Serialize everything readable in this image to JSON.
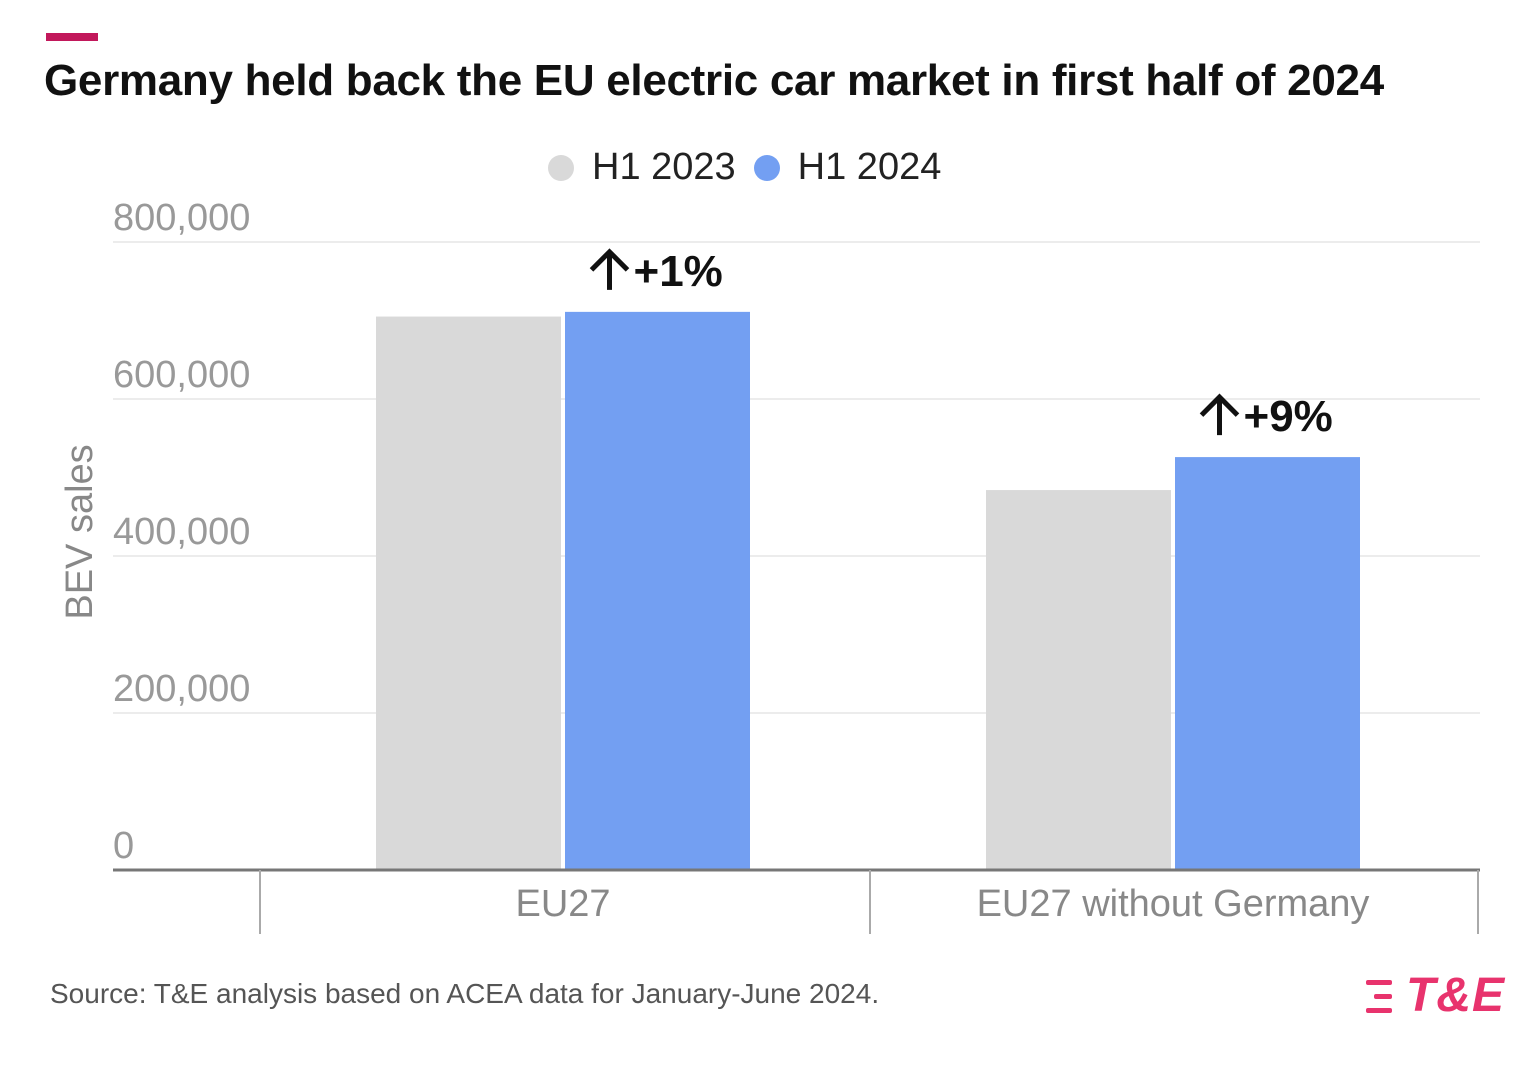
{
  "title": "Germany held back the EU electric car market in first half of 2024",
  "source": "Source: T&E analysis based on ACEA data for January-June 2024.",
  "logo_text": "T&E",
  "colors": {
    "accent": "#c2185b",
    "h1_2023": "#d9d9d9",
    "h1_2024": "#739ff2",
    "logo": "#e8336d"
  },
  "chart_data": {
    "type": "bar",
    "title": "Germany held back the EU electric car market in first half of 2024",
    "xlabel": "",
    "ylabel": "BEV sales",
    "ylim": [
      0,
      800000
    ],
    "yticks": [
      0,
      200000,
      400000,
      600000,
      800000
    ],
    "ytick_labels": [
      "0",
      "200,000",
      "400,000",
      "600,000",
      "800,000"
    ],
    "categories": [
      "EU27",
      "EU27 without Germany"
    ],
    "series": [
      {
        "name": "H1 2023",
        "values": [
          705000,
          484000
        ],
        "color": "#d9d9d9"
      },
      {
        "name": "H1 2024",
        "values": [
          711000,
          526000
        ],
        "color": "#739ff2"
      }
    ],
    "annotations": [
      "+1%",
      "+9%"
    ],
    "annotation_icon": "arrow-up-icon",
    "legend_position": "top-center",
    "grid": true
  }
}
